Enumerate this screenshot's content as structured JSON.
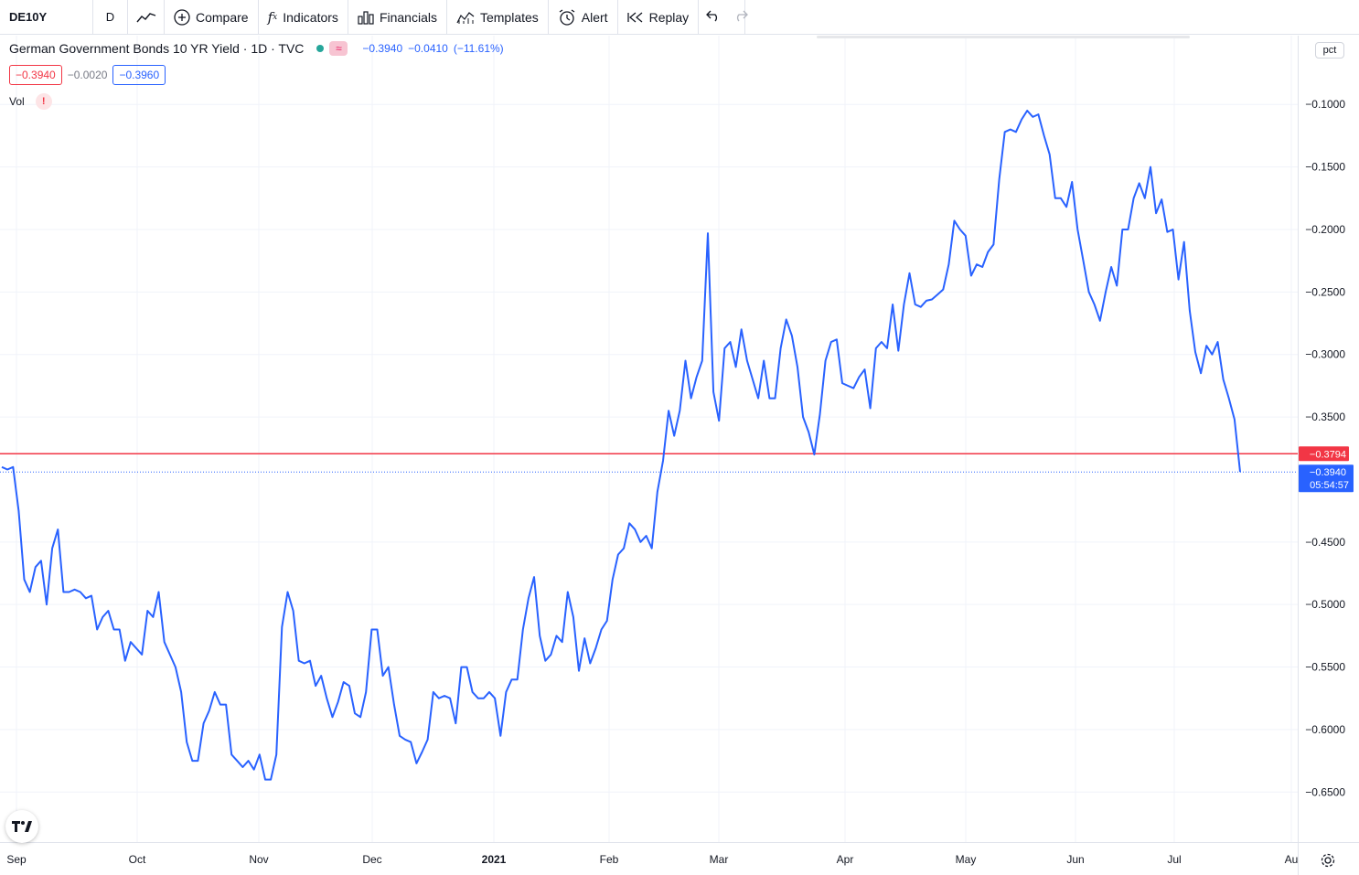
{
  "toolbar": {
    "symbol": "DE10Y",
    "interval": "D",
    "compare": "Compare",
    "indicators": "Indicators",
    "financials": "Financials",
    "templates": "Templates",
    "alert": "Alert",
    "replay": "Replay"
  },
  "legend": {
    "title": "German Government Bonds 10 YR Yield · 1D · TVC",
    "last": "−0.3940",
    "change": "−0.0410",
    "change_pct": "(−11.61%)",
    "bid": "−0.3940",
    "spread": "−0.0020",
    "ask": "−0.3960",
    "vol_label": "Vol",
    "warn": "!"
  },
  "scale": {
    "unit_button": "pct",
    "price_tag": "−0.3940",
    "countdown": "05:54:57",
    "line_tag": "−0.3794"
  },
  "colors": {
    "line": "#2962ff",
    "horizontal_line": "#f23645",
    "price_tag_bg": "#2962ff",
    "line_tag_bg": "#f23645",
    "grid": "#f0f3fa"
  },
  "icons": {
    "chart_type": "line-chart-icon",
    "compare": "plus-circle-icon",
    "indicators": "fx-icon",
    "financials": "bar-chart-icon",
    "templates": "templates-icon",
    "alert": "alarm-clock-icon",
    "replay": "replay-icon",
    "undo": "undo-icon",
    "redo": "redo-icon",
    "logo": "tradingview-logo-icon",
    "settings": "gear-icon"
  },
  "chart_data": {
    "type": "line",
    "title": "German Government Bonds 10 YR Yield · 1D · TVC",
    "xlabel": "",
    "ylabel": "",
    "x_ticks": [
      "Sep",
      "Oct",
      "Nov",
      "Dec",
      "2021",
      "Feb",
      "Mar",
      "Apr",
      "May",
      "Jun",
      "Jul",
      "Au"
    ],
    "y_ticks": [
      "−0.1000",
      "−0.1500",
      "−0.2000",
      "−0.2500",
      "−0.3000",
      "−0.3500",
      "−0.4500",
      "−0.5000",
      "−0.5500",
      "−0.6000",
      "−0.6500"
    ],
    "ylim": [
      -0.69,
      -0.045
    ],
    "grid": true,
    "horizontal_line": -0.3794,
    "last_value": -0.394,
    "series": [
      {
        "values": [
          -0.39,
          -0.392,
          -0.39,
          -0.425,
          -0.48,
          -0.49,
          -0.47,
          -0.465,
          -0.5,
          -0.455,
          -0.44,
          -0.49,
          -0.49,
          -0.488,
          -0.49,
          -0.495,
          -0.493,
          -0.52,
          -0.51,
          -0.505,
          -0.52,
          -0.52,
          -0.545,
          -0.53,
          -0.535,
          -0.54,
          -0.505,
          -0.51,
          -0.49,
          -0.53,
          -0.54,
          -0.55,
          -0.57,
          -0.61,
          -0.625,
          -0.625,
          -0.595,
          -0.585,
          -0.57,
          -0.58,
          -0.58,
          -0.62,
          -0.625,
          -0.63,
          -0.625,
          -0.632,
          -0.62,
          -0.64,
          -0.64,
          -0.62,
          -0.518,
          -0.49,
          -0.505,
          -0.545,
          -0.547,
          -0.545,
          -0.565,
          -0.557,
          -0.575,
          -0.59,
          -0.578,
          -0.562,
          -0.565,
          -0.587,
          -0.59,
          -0.57,
          -0.52,
          -0.52,
          -0.557,
          -0.55,
          -0.58,
          -0.605,
          -0.608,
          -0.61,
          -0.627,
          -0.618,
          -0.608,
          -0.57,
          -0.575,
          -0.573,
          -0.575,
          -0.595,
          -0.55,
          -0.55,
          -0.57,
          -0.575,
          -0.575,
          -0.57,
          -0.575,
          -0.605,
          -0.57,
          -0.56,
          -0.56,
          -0.52,
          -0.495,
          -0.478,
          -0.525,
          -0.545,
          -0.54,
          -0.525,
          -0.53,
          -0.49,
          -0.51,
          -0.553,
          -0.527,
          -0.547,
          -0.535,
          -0.52,
          -0.513,
          -0.48,
          -0.46,
          -0.455,
          -0.435,
          -0.44,
          -0.45,
          -0.445,
          -0.455,
          -0.41,
          -0.385,
          -0.345,
          -0.365,
          -0.345,
          -0.305,
          -0.335,
          -0.318,
          -0.305,
          -0.203,
          -0.33,
          -0.353,
          -0.295,
          -0.29,
          -0.31,
          -0.28,
          -0.305,
          -0.32,
          -0.335,
          -0.305,
          -0.335,
          -0.335,
          -0.295,
          -0.272,
          -0.285,
          -0.31,
          -0.35,
          -0.362,
          -0.38,
          -0.348,
          -0.305,
          -0.29,
          -0.288,
          -0.323,
          -0.325,
          -0.327,
          -0.318,
          -0.312,
          -0.343,
          -0.295,
          -0.29,
          -0.295,
          -0.26,
          -0.297,
          -0.26,
          -0.235,
          -0.26,
          -0.262,
          -0.257,
          -0.256,
          -0.252,
          -0.248,
          -0.228,
          -0.193,
          -0.2,
          -0.205,
          -0.237,
          -0.228,
          -0.23,
          -0.218,
          -0.212,
          -0.16,
          -0.122,
          -0.12,
          -0.122,
          -0.112,
          -0.105,
          -0.11,
          -0.108,
          -0.125,
          -0.14,
          -0.175,
          -0.175,
          -0.182,
          -0.162,
          -0.2,
          -0.225,
          -0.25,
          -0.26,
          -0.273,
          -0.25,
          -0.23,
          -0.245,
          -0.2,
          -0.2,
          -0.175,
          -0.163,
          -0.175,
          -0.15,
          -0.187,
          -0.176,
          -0.202,
          -0.2,
          -0.24,
          -0.21,
          -0.265,
          -0.298,
          -0.315,
          -0.293,
          -0.3,
          -0.29,
          -0.32,
          -0.335,
          -0.352,
          -0.394
        ]
      }
    ]
  }
}
